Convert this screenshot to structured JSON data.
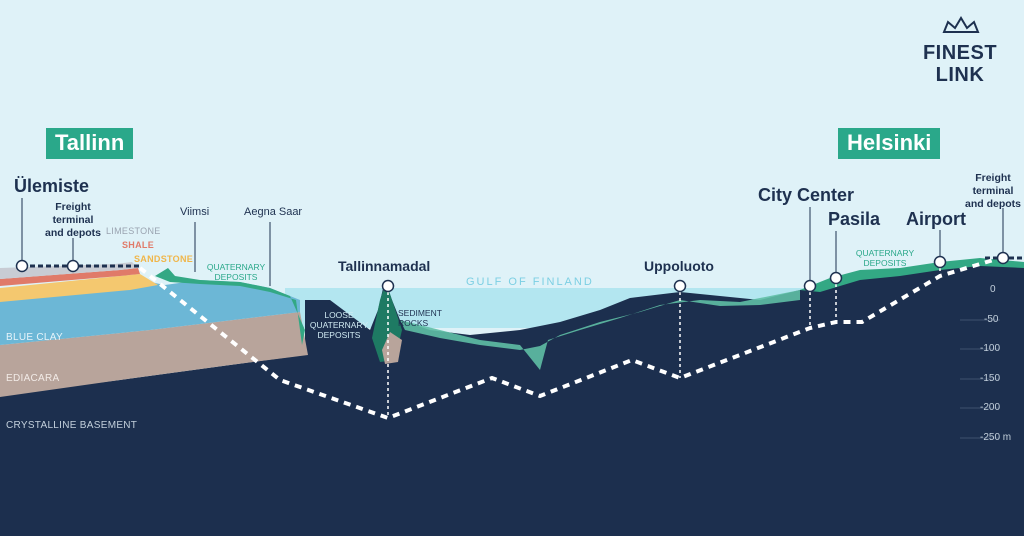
{
  "logo": {
    "line1": "FINEST",
    "line2": "LINK"
  },
  "cities": {
    "tallinn": "Tallinn",
    "helsinki": "Helsinki"
  },
  "stations": {
    "ulemiste": "Ülemiste",
    "freight_tallinn": [
      "Freight",
      "terminal",
      "and depots"
    ],
    "viimsi": "Viimsi",
    "aegna_saar": "Aegna Saar",
    "tallinnamadal": "Tallinnamadal",
    "uppoluoto": "Uppoluoto",
    "city_center": "City Center",
    "pasila": "Pasila",
    "airport": "Airport",
    "freight_helsinki": [
      "Freight",
      "terminal",
      "and depots"
    ]
  },
  "sea": "GULF OF FINLAND",
  "layers": {
    "limestone": "LIMESTONE",
    "shale": "SHALE",
    "sandstone": "SANDSTONE",
    "blue_clay": "BLUE CLAY",
    "ediacara": "EDIACARA",
    "crystalline": "CRYSTALLINE BASEMENT",
    "quaternary_tallinn": [
      "QUATERNARY",
      "DEPOSITS"
    ],
    "loose_quaternary": [
      "LOOSE",
      "QUATERNARY",
      "DEPOSITS"
    ],
    "sediment_rocks": [
      "SEDIMENT",
      "ROCKS"
    ],
    "quaternary_helsinki": [
      "QUATERNARY",
      "DEPOSITS"
    ]
  },
  "depth_axis": {
    "ticks": [
      "0",
      "-50",
      "-100",
      "-150",
      "-200",
      "-250 m"
    ]
  },
  "colors": {
    "sky": "#dff2f8",
    "sea": "#b3e6f0",
    "bedrock": "#1c2f4e",
    "blue_clay": "#6cb7d6",
    "ediacara": "#b8a49b",
    "green": "#33a884",
    "dark_green": "#1e7a63",
    "tunnel": "#ffffff"
  }
}
